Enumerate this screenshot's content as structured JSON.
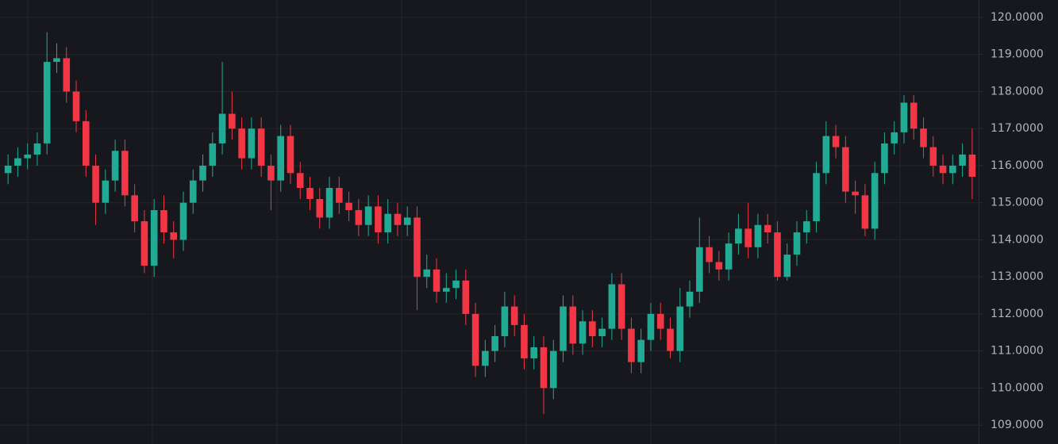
{
  "chart_data": {
    "type": "candlestick",
    "open": [
      115.8,
      116.0,
      116.2,
      116.3,
      116.6,
      118.8,
      118.9,
      118.0,
      117.2,
      116.0,
      115.0,
      115.6,
      116.4,
      115.2,
      114.5,
      113.3,
      114.8,
      114.2,
      114.0,
      115.0,
      115.6,
      116.0,
      116.6,
      117.4,
      117.0,
      116.2,
      117.0,
      116.0,
      115.6,
      116.8,
      115.8,
      115.4,
      115.1,
      114.6,
      115.4,
      115.0,
      114.8,
      114.4,
      114.9,
      114.2,
      114.7,
      114.4,
      114.6,
      113.0,
      113.2,
      112.6,
      112.7,
      112.9,
      112.0,
      110.6,
      111.0,
      111.4,
      112.2,
      111.7,
      110.8,
      111.1,
      110.0,
      111.0,
      112.2,
      111.2,
      111.8,
      111.4,
      111.6,
      112.8,
      111.6,
      110.7,
      111.3,
      112.0,
      111.6,
      111.0,
      112.2,
      112.6,
      113.8,
      113.4,
      113.2,
      113.9,
      114.3,
      113.8,
      114.4,
      114.2,
      113.0,
      113.6,
      114.2,
      114.5,
      115.8,
      116.8,
      116.5,
      115.3,
      115.2,
      114.3,
      115.8,
      116.6,
      116.9,
      117.7,
      117.0,
      116.5,
      116.0,
      115.8,
      116.0,
      116.3
    ],
    "high": [
      116.3,
      116.5,
      116.6,
      116.9,
      119.6,
      119.3,
      119.2,
      118.3,
      117.5,
      116.3,
      115.9,
      116.7,
      116.7,
      115.5,
      114.8,
      115.1,
      115.2,
      114.5,
      115.3,
      115.9,
      116.3,
      116.9,
      118.8,
      118.0,
      117.3,
      117.3,
      117.3,
      116.3,
      117.1,
      117.1,
      116.1,
      115.7,
      115.4,
      115.7,
      115.7,
      115.3,
      115.1,
      115.2,
      115.2,
      115.1,
      115.0,
      114.9,
      114.9,
      113.6,
      113.5,
      113.1,
      113.2,
      113.2,
      112.3,
      111.3,
      111.7,
      112.6,
      112.5,
      112.0,
      111.4,
      111.4,
      111.3,
      112.5,
      112.5,
      112.1,
      112.1,
      111.9,
      113.1,
      113.1,
      111.9,
      111.6,
      112.3,
      112.3,
      111.9,
      112.7,
      112.9,
      114.6,
      114.1,
      113.7,
      114.2,
      114.7,
      115.0,
      114.7,
      114.7,
      114.5,
      113.9,
      114.5,
      114.8,
      116.1,
      117.2,
      117.1,
      116.8,
      115.6,
      115.5,
      116.1,
      116.9,
      117.2,
      117.9,
      117.9,
      117.3,
      116.8,
      116.3,
      116.3,
      116.6,
      117.0
    ],
    "low": [
      115.5,
      115.7,
      115.9,
      116.0,
      116.3,
      118.5,
      117.7,
      116.9,
      115.7,
      114.4,
      114.7,
      115.3,
      114.9,
      114.2,
      113.1,
      113.0,
      113.9,
      113.5,
      113.7,
      114.7,
      115.3,
      115.7,
      116.3,
      116.7,
      115.9,
      115.9,
      115.7,
      114.8,
      115.3,
      115.5,
      115.1,
      114.8,
      114.3,
      114.3,
      114.7,
      114.5,
      114.1,
      114.1,
      113.9,
      113.9,
      114.1,
      114.1,
      112.1,
      112.7,
      112.3,
      112.3,
      112.4,
      111.7,
      110.3,
      110.3,
      110.7,
      111.1,
      111.4,
      110.5,
      110.5,
      109.3,
      109.7,
      110.7,
      110.9,
      110.9,
      111.1,
      111.1,
      111.3,
      111.3,
      110.4,
      110.4,
      111.0,
      111.3,
      110.8,
      110.7,
      111.9,
      112.3,
      113.1,
      112.9,
      112.9,
      113.6,
      113.5,
      113.5,
      113.9,
      112.9,
      112.9,
      113.3,
      113.9,
      114.2,
      115.5,
      116.2,
      115.0,
      114.7,
      114.1,
      114.0,
      115.5,
      116.3,
      116.6,
      116.7,
      116.2,
      115.7,
      115.5,
      115.5,
      115.7,
      115.1
    ],
    "close": [
      116.0,
      116.2,
      116.3,
      116.6,
      118.8,
      118.9,
      118.0,
      117.2,
      116.0,
      115.0,
      115.6,
      116.4,
      115.2,
      114.5,
      113.3,
      114.8,
      114.2,
      114.0,
      115.0,
      115.6,
      116.0,
      116.6,
      117.4,
      117.0,
      116.2,
      117.0,
      116.0,
      115.6,
      116.8,
      115.8,
      115.4,
      115.1,
      114.6,
      115.4,
      115.0,
      114.8,
      114.4,
      114.9,
      114.2,
      114.7,
      114.4,
      114.6,
      113.0,
      113.2,
      112.6,
      112.7,
      112.9,
      112.0,
      110.6,
      111.0,
      111.4,
      112.2,
      111.7,
      110.8,
      111.1,
      110.0,
      111.0,
      112.2,
      111.2,
      111.8,
      111.4,
      111.6,
      112.8,
      111.6,
      110.7,
      111.3,
      112.0,
      111.6,
      111.0,
      112.2,
      112.6,
      113.8,
      113.4,
      113.2,
      113.9,
      114.3,
      113.8,
      114.4,
      114.2,
      113.0,
      113.6,
      114.2,
      114.5,
      115.8,
      116.8,
      116.5,
      115.3,
      115.2,
      114.3,
      115.8,
      116.6,
      116.9,
      117.7,
      117.0,
      116.5,
      116.0,
      115.8,
      116.0,
      116.3,
      115.7
    ],
    "up_color": "#22ab94",
    "down_color": "#f23645",
    "ylim": [
      108.49,
      120.47
    ],
    "yticks": [
      {
        "value": 109,
        "label": "109.0000"
      },
      {
        "value": 110,
        "label": "110.0000"
      },
      {
        "value": 111,
        "label": "111.0000"
      },
      {
        "value": 112,
        "label": "112.0000"
      },
      {
        "value": 113,
        "label": "113.0000"
      },
      {
        "value": 114,
        "label": "114.0000"
      },
      {
        "value": 115,
        "label": "115.0000"
      },
      {
        "value": 116,
        "label": "116.0000"
      },
      {
        "value": 117,
        "label": "117.0000"
      },
      {
        "value": 118,
        "label": "118.0000"
      },
      {
        "value": 119,
        "label": "119.0000"
      },
      {
        "value": 120,
        "label": "120.0000"
      }
    ],
    "grid": true
  }
}
